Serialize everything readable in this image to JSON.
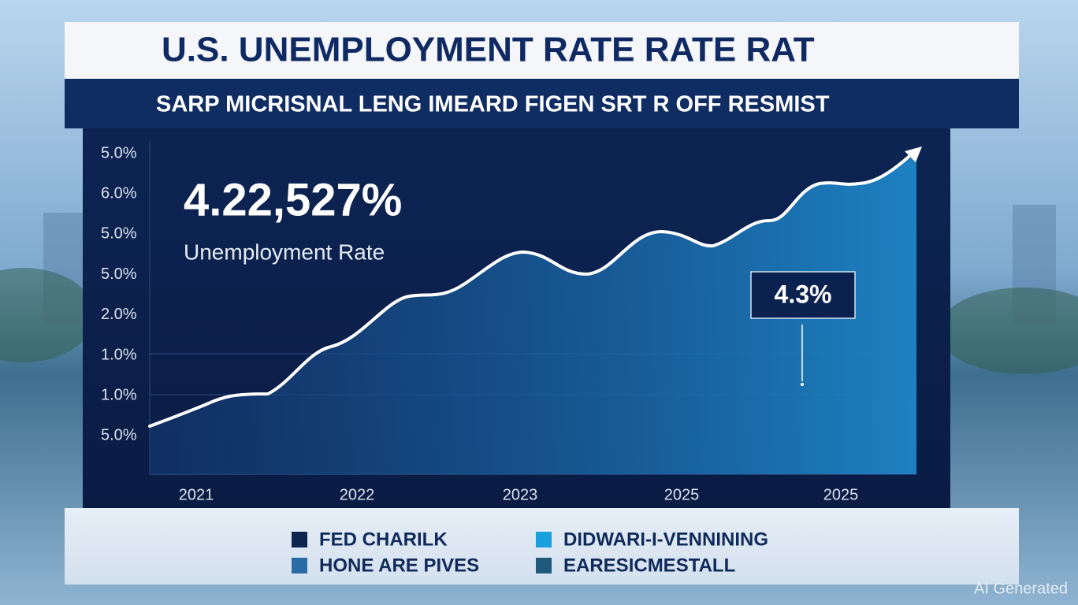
{
  "title": "U.S. UNEMPLOYMENT RATE RATE RAT",
  "subtitle": "SARP MICRISNAL LENG IMEARD FIGEN SRT R OFF RESMIST",
  "headline": {
    "value": "4.22,527%",
    "label": "Unemployment Rate"
  },
  "y_axis_labels": [
    "5.0%",
    "6.0%",
    "5.0%",
    "5.0%",
    "2.0%",
    "1.0%",
    "1.0%",
    "5.0%"
  ],
  "x_axis_labels": [
    "2021",
    "2022",
    "2023",
    "2025",
    "2025"
  ],
  "callout": "4.3%",
  "legend": [
    {
      "label": "FED CHARILK",
      "color": "#0e2550"
    },
    {
      "label": "DIDWARI-I-VENNINING",
      "color": "#1aa0dc"
    },
    {
      "label": "HONE ARE PIVES",
      "color": "#2a6aa6"
    },
    {
      "label": "EARESICMESTALL",
      "color": "#1f5a7a"
    }
  ],
  "watermark": "AI Generated"
}
